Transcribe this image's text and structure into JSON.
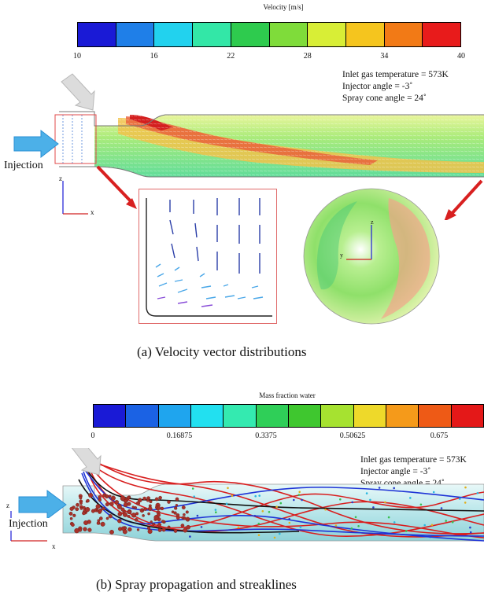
{
  "panel_a": {
    "colorbar": {
      "title": "Velocity [m/s]",
      "ticks": [
        "10",
        "16",
        "22",
        "28",
        "34",
        "40"
      ],
      "colors": [
        "#1a1ad6",
        "#1f7fe8",
        "#22d2ee",
        "#33e7a7",
        "#2ecb4e",
        "#7fdc3a",
        "#d8ee36",
        "#f5c51e",
        "#f27a16",
        "#e81b1b"
      ]
    },
    "params": [
      "Inlet gas temperature = 573K",
      "Injector angle = -3˚",
      "Spray cone angle = 24˚"
    ],
    "injection_label": "Injection",
    "axis_z": "z",
    "axis_x": "x",
    "axis_y": "y",
    "caption": "(a) Velocity vector distributions"
  },
  "panel_b": {
    "colorbar": {
      "title": "Mass fraction water",
      "ticks": [
        "0",
        "0.16875",
        "0.3375",
        "0.50625",
        "0.675"
      ],
      "colors": [
        "#1a1ad6",
        "#1b62e4",
        "#1fa5ee",
        "#22e0f0",
        "#34eab0",
        "#2fcf58",
        "#3fc72f",
        "#a6e230",
        "#eed92a",
        "#f59a1a",
        "#ee5a16",
        "#e41818"
      ]
    },
    "params": [
      "Inlet gas temperature = 573K",
      "Injector angle = -3˚",
      "Spray cone angle = 24˚"
    ],
    "injection_label": "Injection",
    "axis_z": "z",
    "axis_x": "x",
    "caption": "(b) Spray propagation and streaklines"
  }
}
